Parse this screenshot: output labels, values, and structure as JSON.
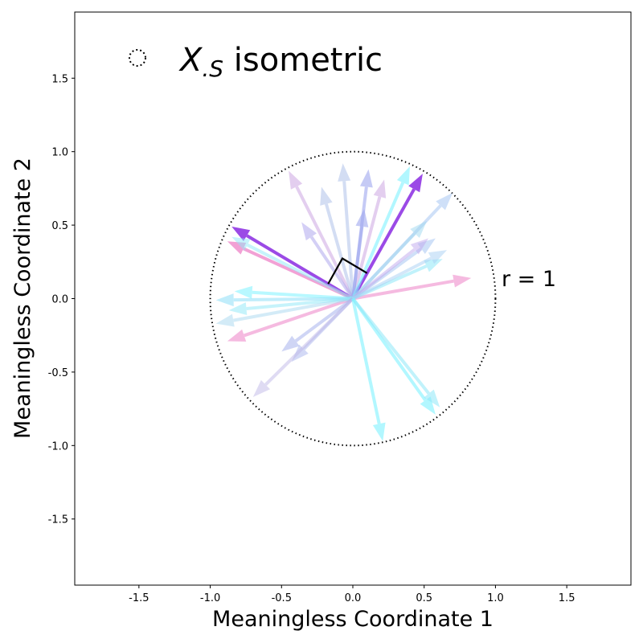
{
  "chart_data": {
    "type": "scatter",
    "xlabel": "Meaningless Coordinate 1",
    "ylabel": "Meaningless Coordinate 2",
    "xlim": [
      -1.95,
      1.95
    ],
    "ylim": [
      -1.95,
      1.95
    ],
    "xticks": [
      "-1.5",
      "-1.0",
      "-0.5",
      "0.0",
      "0.5",
      "1.0",
      "1.5"
    ],
    "yticks": [
      "-1.5",
      "-1.0",
      "-0.5",
      "0.0",
      "0.5",
      "1.0",
      "1.5"
    ],
    "grid": false,
    "legend": {
      "placement": "top-left",
      "label_main": "X",
      "label_sub": ".S",
      "label_rest": " isometric"
    },
    "circle": {
      "center": [
        0,
        0
      ],
      "radius": 1.0,
      "style": "dotted"
    },
    "annotation": "r = 1",
    "right_angle_marker": true,
    "vectors": [
      {
        "x": -0.85,
        "y": 0.49,
        "color": "#8a2be2",
        "alpha": 0.85,
        "width": 4
      },
      {
        "x": 0.49,
        "y": 0.85,
        "color": "#8a2be2",
        "alpha": 0.85,
        "width": 4
      },
      {
        "x": -0.88,
        "y": 0.39,
        "color": "#ee82c8",
        "alpha": 0.75,
        "width": 4
      },
      {
        "x": 0.83,
        "y": 0.14,
        "color": "#ee82c8",
        "alpha": 0.55,
        "width": 4
      },
      {
        "x": -0.88,
        "y": -0.29,
        "color": "#ee82c8",
        "alpha": 0.55,
        "width": 4
      },
      {
        "x": -0.45,
        "y": 0.87,
        "color": "#c89fe0",
        "alpha": 0.5,
        "width": 4
      },
      {
        "x": 0.22,
        "y": 0.81,
        "color": "#c89fe0",
        "alpha": 0.5,
        "width": 4
      },
      {
        "x": -0.22,
        "y": 0.76,
        "color": "#a8bce8",
        "alpha": 0.5,
        "width": 4
      },
      {
        "x": -0.07,
        "y": 0.92,
        "color": "#a8bce8",
        "alpha": 0.5,
        "width": 4
      },
      {
        "x": 0.11,
        "y": 0.88,
        "color": "#9fa8f0",
        "alpha": 0.6,
        "width": 4
      },
      {
        "x": 0.08,
        "y": 0.61,
        "color": "#9fa8f0",
        "alpha": 0.6,
        "width": 4
      },
      {
        "x": 0.4,
        "y": 0.9,
        "color": "#7ff3ff",
        "alpha": 0.6,
        "width": 4
      },
      {
        "x": -0.36,
        "y": 0.52,
        "color": "#b0a8ee",
        "alpha": 0.55,
        "width": 4
      },
      {
        "x": 0.7,
        "y": 0.72,
        "color": "#a8c8f4",
        "alpha": 0.55,
        "width": 4
      },
      {
        "x": 0.52,
        "y": 0.53,
        "color": "#9fd8f0",
        "alpha": 0.5,
        "width": 4
      },
      {
        "x": 0.58,
        "y": 0.41,
        "color": "#a8c8f4",
        "alpha": 0.55,
        "width": 4
      },
      {
        "x": 0.53,
        "y": 0.41,
        "color": "#c0a8ee",
        "alpha": 0.5,
        "width": 4
      },
      {
        "x": 0.63,
        "y": 0.27,
        "color": "#8fe8f8",
        "alpha": 0.55,
        "width": 4
      },
      {
        "x": 0.66,
        "y": 0.33,
        "color": "#a8d0f4",
        "alpha": 0.5,
        "width": 4
      },
      {
        "x": -0.85,
        "y": 0.42,
        "color": "#8fe8f8",
        "alpha": 0.5,
        "width": 4
      },
      {
        "x": -0.83,
        "y": 0.05,
        "color": "#7ff3ff",
        "alpha": 0.55,
        "width": 4
      },
      {
        "x": -0.96,
        "y": -0.01,
        "color": "#8fe0f8",
        "alpha": 0.55,
        "width": 4
      },
      {
        "x": -0.96,
        "y": -0.17,
        "color": "#a8d8f0",
        "alpha": 0.5,
        "width": 4
      },
      {
        "x": -0.87,
        "y": -0.08,
        "color": "#8fe8f8",
        "alpha": 0.5,
        "width": 4
      },
      {
        "x": -0.5,
        "y": -0.36,
        "color": "#a8b4ee",
        "alpha": 0.55,
        "width": 4
      },
      {
        "x": -0.43,
        "y": -0.43,
        "color": "#a8b4ee",
        "alpha": 0.5,
        "width": 4
      },
      {
        "x": -0.7,
        "y": -0.67,
        "color": "#c0b8e8",
        "alpha": 0.5,
        "width": 4
      },
      {
        "x": 0.58,
        "y": -0.79,
        "color": "#7ff3ff",
        "alpha": 0.6,
        "width": 4
      },
      {
        "x": 0.61,
        "y": -0.74,
        "color": "#8fe8f8",
        "alpha": 0.55,
        "width": 4
      },
      {
        "x": 0.21,
        "y": -0.97,
        "color": "#7ff3ff",
        "alpha": 0.6,
        "width": 4
      }
    ]
  }
}
